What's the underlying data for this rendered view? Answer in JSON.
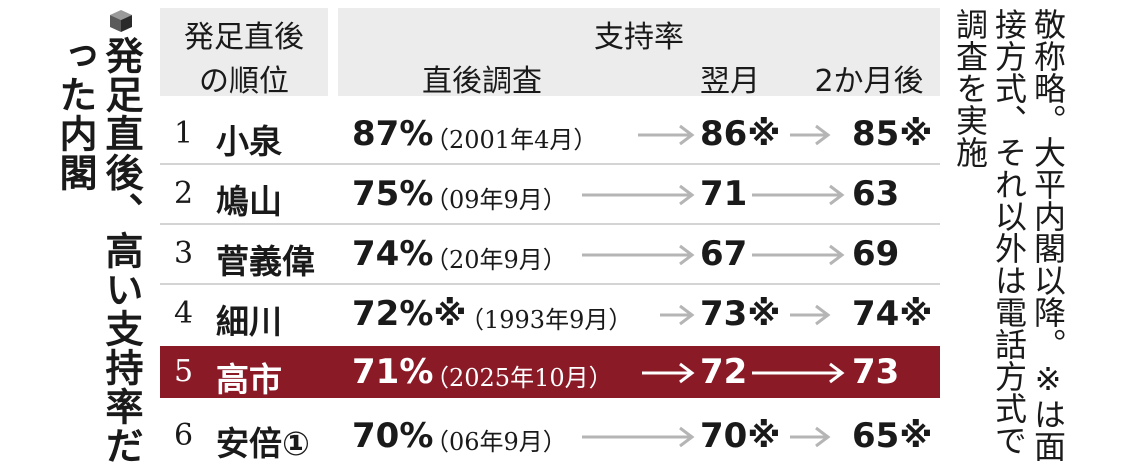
{
  "title": "発足直後、高い支持率だった内閣",
  "note": "敬称略。大平内閣以降。※は面接方式、それ以外は電話方式で調査を実施",
  "headers": {
    "rank_line1": "発足直後",
    "rank_line2": "の順位",
    "support": "支持率",
    "initial": "直後調査",
    "month1": "翌月",
    "month2": "2か月後"
  },
  "rows": [
    {
      "rank": "1",
      "name": "小泉",
      "initial": "87%",
      "date": "（2001年4月）",
      "month1": "86※",
      "month2": "85※",
      "highlight": false
    },
    {
      "rank": "2",
      "name": "鳩山",
      "initial": "75%",
      "date": "（09年9月）",
      "month1": "71",
      "month2": "63",
      "highlight": false
    },
    {
      "rank": "3",
      "name": "菅義偉",
      "initial": "74%",
      "date": "（20年9月）",
      "month1": "67",
      "month2": "69",
      "highlight": false
    },
    {
      "rank": "4",
      "name": "細川",
      "initial": "72%※",
      "date": "（1993年9月）",
      "month1": "73※",
      "month2": "74※",
      "highlight": false
    },
    {
      "rank": "5",
      "name": "高市",
      "initial": "71%",
      "date": "（2025年10月）",
      "month1": "72",
      "month2": "73",
      "highlight": true
    },
    {
      "rank": "6",
      "name": "安倍①",
      "initial": "70%",
      "date": "（06年9月）",
      "month1": "70※",
      "month2": "65※",
      "highlight": false
    }
  ],
  "colors": {
    "highlight_row": "#8b1a27",
    "arrow": "#b5b5b5",
    "header_bg": "#ececec"
  },
  "icons": {
    "title": "cube-icon"
  }
}
